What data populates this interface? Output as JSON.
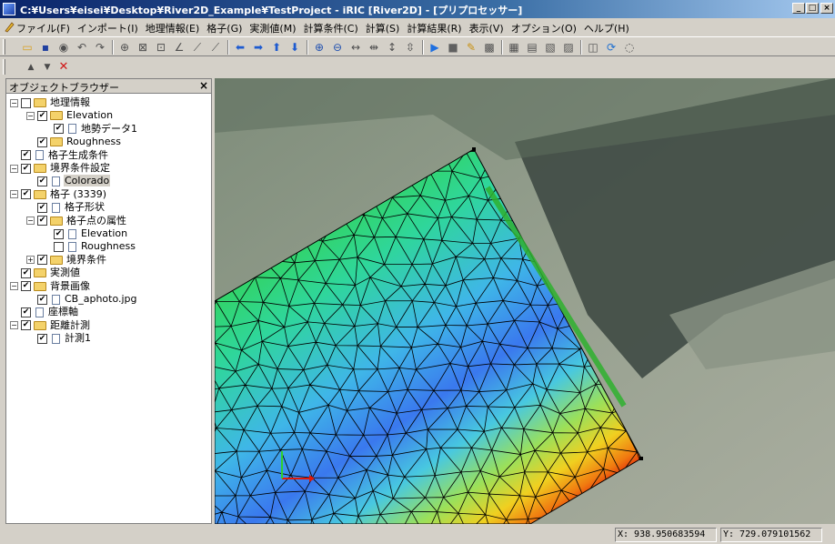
{
  "window": {
    "title": "C:¥Users¥eisei¥Desktop¥River2D_Example¥TestProject - iRIC [River2D] - [プリプロセッサー]",
    "min_label": "_",
    "max_label": "□",
    "close_label": "×"
  },
  "menu": {
    "items": [
      "ファイル(F)",
      "インポート(I)",
      "地理情報(E)",
      "格子(G)",
      "実測値(M)",
      "計算条件(C)",
      "計算(S)",
      "計算結果(R)",
      "表示(V)",
      "オプション(O)",
      "ヘルプ(H)"
    ],
    "mdi_min": "_",
    "mdi_restore": "❐",
    "mdi_close": "×"
  },
  "toolbar1": {
    "icons": [
      "open-folder-icon",
      "save-icon",
      "camera-icon",
      "undo-icon",
      "redo-icon",
      "zoom-fit-icon",
      "grid-x-icon",
      "grid-y-icon",
      "axis-icon",
      "axis2-icon",
      "axis3-icon",
      "arrow-left-icon",
      "arrow-right-icon",
      "arrow-up-icon",
      "arrow-down-icon",
      "zoom-in-icon",
      "zoom-out-icon",
      "expand-h-icon",
      "shrink-h-icon",
      "expand-v-icon",
      "shrink-v-icon",
      "run-icon",
      "stop-icon",
      "pencil-icon",
      "color-icon",
      "view-2d-icon",
      "view-2d-alt-icon",
      "view-3d-icon",
      "chart-icon",
      "zoom-box-icon",
      "refresh-icon",
      "mouse-icon"
    ]
  },
  "toolbar2": {
    "up_glyph": "▲",
    "down_glyph": "▼",
    "delete_glyph": "✕"
  },
  "browser": {
    "title": "オブジェクトブラウザー",
    "close": "×",
    "tree": [
      {
        "label": "地理情報",
        "level": 0,
        "expander": "−",
        "checked": false,
        "icon": "folder"
      },
      {
        "label": "Elevation",
        "level": 1,
        "expander": "−",
        "checked": true,
        "icon": "folder"
      },
      {
        "label": "地勢データ1",
        "level": 2,
        "expander": "",
        "checked": true,
        "icon": "doc"
      },
      {
        "label": "Roughness",
        "level": 1,
        "expander": "",
        "checked": true,
        "icon": "folder"
      },
      {
        "label": "格子生成条件",
        "level": 0,
        "expander": "",
        "checked": true,
        "icon": "doc"
      },
      {
        "label": "境界条件設定",
        "level": 0,
        "expander": "−",
        "checked": true,
        "icon": "folder"
      },
      {
        "label": "Colorado",
        "level": 1,
        "expander": "",
        "checked": true,
        "icon": "doc",
        "selected": true
      },
      {
        "label": "格子 (3339)",
        "level": 0,
        "expander": "−",
        "checked": true,
        "icon": "folder"
      },
      {
        "label": "格子形状",
        "level": 1,
        "expander": "",
        "checked": true,
        "icon": "doc"
      },
      {
        "label": "格子点の属性",
        "level": 1,
        "expander": "−",
        "checked": true,
        "icon": "folder"
      },
      {
        "label": "Elevation",
        "level": 2,
        "expander": "",
        "checked": true,
        "icon": "doc"
      },
      {
        "label": "Roughness",
        "level": 2,
        "expander": "",
        "checked": false,
        "icon": "doc"
      },
      {
        "label": "境界条件",
        "level": 1,
        "expander": "+",
        "checked": true,
        "icon": "folder"
      },
      {
        "label": "実測値",
        "level": 0,
        "expander": "",
        "checked": true,
        "icon": "folder"
      },
      {
        "label": "背景画像",
        "level": 0,
        "expander": "−",
        "checked": true,
        "icon": "folder"
      },
      {
        "label": "CB_aphoto.jpg",
        "level": 1,
        "expander": "",
        "checked": true,
        "icon": "doc"
      },
      {
        "label": "座標軸",
        "level": 0,
        "expander": "",
        "checked": true,
        "icon": "doc"
      },
      {
        "label": "距離計測",
        "level": 0,
        "expander": "−",
        "checked": true,
        "icon": "folder"
      },
      {
        "label": "計測1",
        "level": 1,
        "expander": "",
        "checked": true,
        "icon": "doc"
      }
    ]
  },
  "status": {
    "x_coord": "X: 938.950683594",
    "y_coord": "Y: 729.079101562"
  },
  "colors": {
    "title_start": "#0a246a",
    "title_end": "#a6caf0",
    "mesh_line": "#000000",
    "boundary": "#2fb12f"
  }
}
